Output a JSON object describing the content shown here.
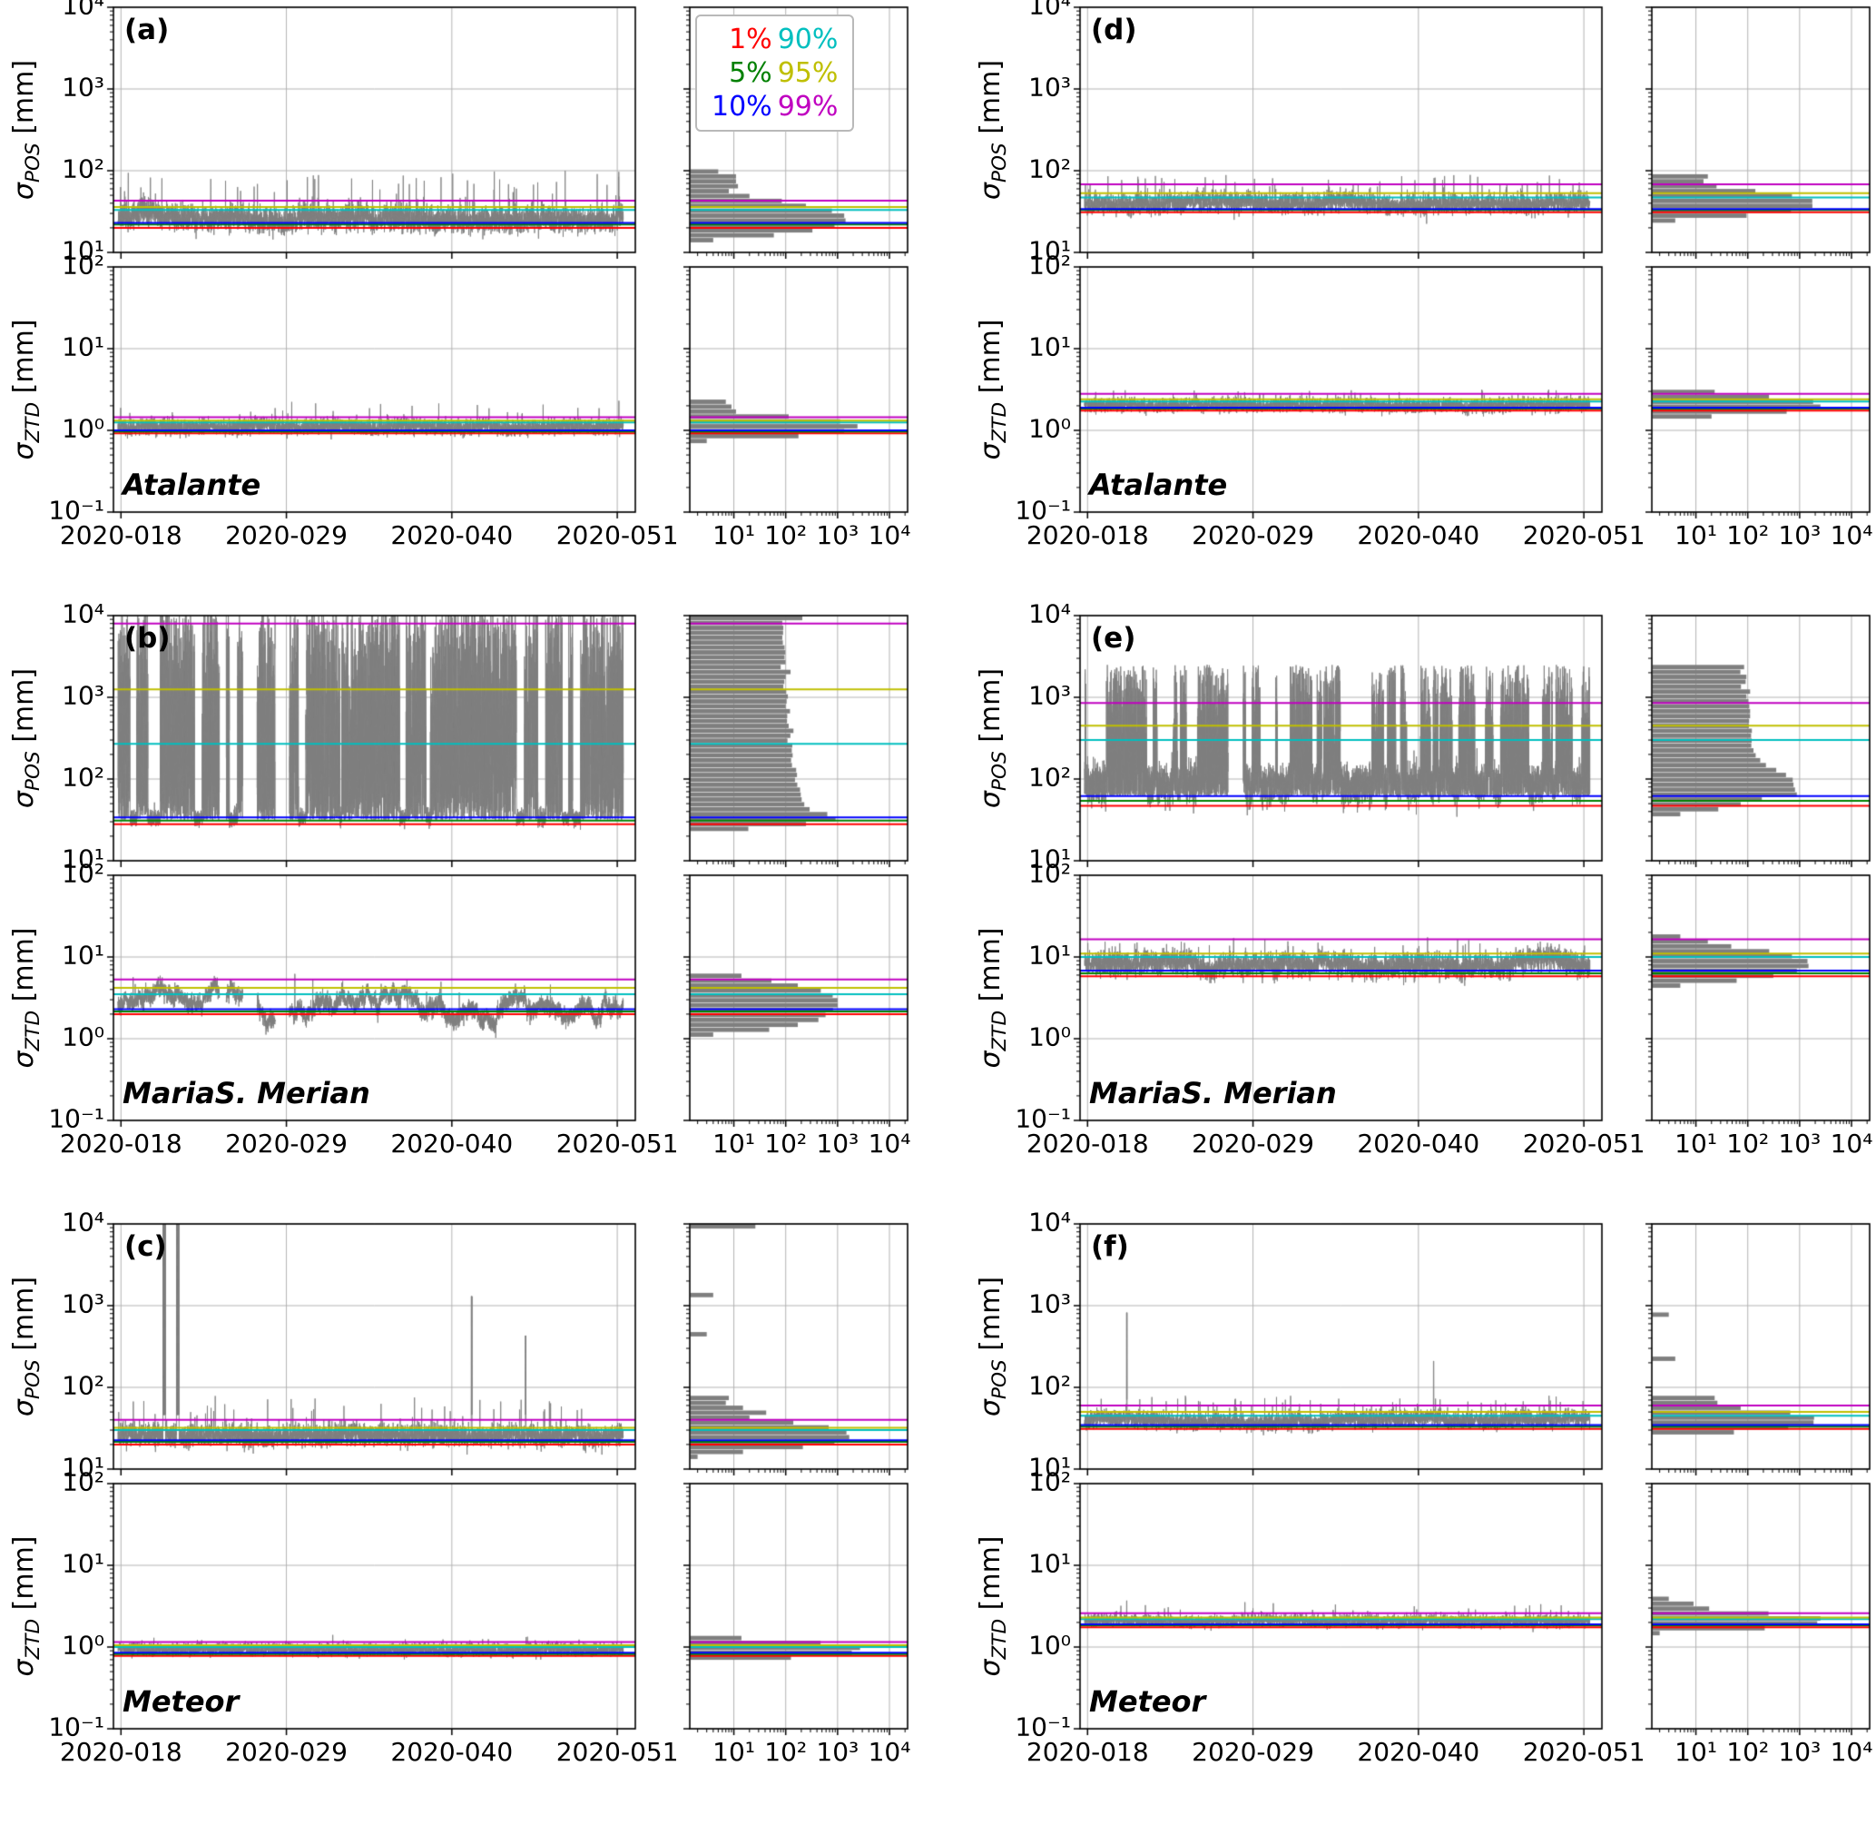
{
  "colors": {
    "series": "#7f7f7f",
    "grid": "#b3b3b3",
    "axis": "#000000",
    "background": "#ffffff",
    "percentiles": {
      "p1": "#ff0000",
      "p5": "#008000",
      "p10": "#0000ff",
      "p90": "#00bfbf",
      "p95": "#bfbf00",
      "p99": "#c000c0"
    }
  },
  "legend": {
    "items": [
      {
        "key": "p1",
        "label": "1%"
      },
      {
        "key": "p5",
        "label": "5%"
      },
      {
        "key": "p10",
        "label": "10%"
      },
      {
        "key": "p90",
        "label": "90%"
      },
      {
        "key": "p95",
        "label": "95%"
      },
      {
        "key": "p99",
        "label": "99%"
      }
    ]
  },
  "axes": {
    "time": {
      "tick_labels": [
        "2020-018",
        "2020-029",
        "2020-040",
        "2020-051"
      ],
      "tick_days": [
        18,
        29,
        40,
        51
      ]
    },
    "hist": {
      "tick_labels": [
        "10¹",
        "10²",
        "10³",
        "10⁴"
      ],
      "tick_logs": [
        1,
        2,
        3,
        4
      ]
    },
    "pos_axis": {
      "sym": "σ",
      "sub": "POS",
      "unit": " [mm]",
      "tick_labels": [
        "10⁴",
        "10³",
        "10²",
        "10¹"
      ],
      "tick_logs": [
        4,
        3,
        2,
        1
      ],
      "ylim_log": [
        1,
        4
      ]
    },
    "ztd_axis": {
      "sym": "σ",
      "sub": "ZTD",
      "unit": " [mm]",
      "tick_labels": [
        "10²",
        "10¹",
        "10⁰",
        "10⁻¹"
      ],
      "tick_logs": [
        2,
        1,
        0,
        -1
      ],
      "ylim_log": [
        -1,
        2
      ]
    }
  },
  "chart_meta": {
    "type": "line",
    "description": "Formal errors of kinematic PPP position (sigma_POS) and ZTD (sigma_ZTD) per ship, log y-scale, with marginal horizontal histograms (log count axis) and percentile lines 1/5/10/90/95/99%.",
    "histogram": {
      "orientation": "horizontal",
      "x": "count",
      "x_scale": "log"
    }
  },
  "chart_data": [
    {
      "panel_label": "(a)",
      "ship": "Atalante",
      "col": 0,
      "group": 0,
      "pos": {
        "percentiles_mm": {
          "p1": 20,
          "p5": 22,
          "p10": 23,
          "p90": 33,
          "p95": 36,
          "p99": 43
        },
        "series": {
          "kind": "band",
          "n": 5200,
          "seed": 11,
          "base_mm": 27,
          "sigma_log": 0.075,
          "wander_log": 0.03,
          "spike_prob": 0.01,
          "spike_max_log": 2.0,
          "spikes": [],
          "gaps": []
        }
      },
      "ztd": {
        "percentiles_mm": {
          "p1": 0.92,
          "p5": 0.97,
          "p10": 1.0,
          "p90": 1.25,
          "p95": 1.32,
          "p99": 1.45
        },
        "series": {
          "kind": "band",
          "n": 5200,
          "seed": 12,
          "base_mm": 1.1,
          "sigma_log": 0.045,
          "wander_log": 0.015,
          "spike_prob": 0.005,
          "spike_max_log": 0.35,
          "spikes": [
            {
              "day": 51.1,
              "v_mm": 2.3,
              "w": 3
            }
          ],
          "gaps": []
        }
      }
    },
    {
      "panel_label": "(b)",
      "ship": "MariaS. Merian",
      "col": 0,
      "group": 1,
      "pos": {
        "percentiles_mm": {
          "p1": 28,
          "p5": 31,
          "p10": 34,
          "p90": 270,
          "p95": 1250,
          "p99": 8000
        },
        "series": {
          "kind": "bursty",
          "n": 7500,
          "seed": 21,
          "quiet_base_mm": 33,
          "quiet_sigma_log": 0.05,
          "burst_low_log": 1.5,
          "burst_high_log": 4.1,
          "burst_frac": 0.8,
          "burst_pow": 1.5,
          "seg_min": 20,
          "seg_max": 160,
          "spikes": [],
          "gaps": [
            [
              24.55,
              25.0
            ],
            [
              26.1,
              27.05
            ],
            [
              28.25,
              29.2
            ]
          ]
        }
      },
      "ztd": {
        "percentiles_mm": {
          "p1": 2.0,
          "p5": 2.15,
          "p10": 2.3,
          "p90": 3.5,
          "p95": 4.2,
          "p99": 5.3
        },
        "series": {
          "kind": "band",
          "n": 6000,
          "seed": 22,
          "base_mm": 2.7,
          "sigma_log": 0.05,
          "wander_log": 0.12,
          "spike_prob": 0.002,
          "spike_max_log": 0.78,
          "spikes": [
            {
              "day": 29.55,
              "v_mm": 6.2,
              "w": 5
            }
          ],
          "gaps": [
            [
              24.55,
              25.0
            ],
            [
              26.1,
              27.05
            ],
            [
              28.25,
              29.2
            ]
          ]
        }
      }
    },
    {
      "panel_label": "(c)",
      "ship": "Meteor",
      "col": 0,
      "group": 2,
      "pos": {
        "percentiles_mm": {
          "p1": 20,
          "p5": 21.5,
          "p10": 22.5,
          "p90": 30,
          "p95": 32,
          "p99": 40
        },
        "series": {
          "kind": "band",
          "n": 5200,
          "seed": 31,
          "base_mm": 26,
          "sigma_log": 0.065,
          "wander_log": 0.02,
          "spike_prob": 0.01,
          "spike_max_log": 1.9,
          "spikes": [
            {
              "day": 20.8,
              "v_mm": 12000,
              "w": 26
            },
            {
              "day": 21.7,
              "v_mm": 12000,
              "w": 26
            },
            {
              "day": 41.3,
              "v_mm": 1300,
              "w": 8
            },
            {
              "day": 44.9,
              "v_mm": 430,
              "w": 6
            }
          ],
          "gaps": []
        }
      },
      "ztd": {
        "percentiles_mm": {
          "p1": 0.78,
          "p5": 0.82,
          "p10": 0.85,
          "p90": 1.0,
          "p95": 1.05,
          "p99": 1.15
        },
        "series": {
          "kind": "band",
          "n": 5200,
          "seed": 32,
          "base_mm": 0.95,
          "sigma_log": 0.035,
          "wander_log": 0.012,
          "spike_prob": 0.004,
          "spike_max_log": 0.15,
          "spikes": [],
          "gaps": []
        }
      }
    },
    {
      "panel_label": "(d)",
      "ship": "Atalante",
      "col": 1,
      "group": 0,
      "pos": {
        "percentiles_mm": {
          "p1": 31,
          "p5": 33,
          "p10": 34,
          "p90": 47,
          "p95": 53,
          "p99": 68
        },
        "series": {
          "kind": "band",
          "n": 5200,
          "seed": 41,
          "base_mm": 40,
          "sigma_log": 0.055,
          "wander_log": 0.02,
          "spike_prob": 0.012,
          "spike_max_log": 1.95,
          "spikes": [],
          "gaps": []
        }
      },
      "ztd": {
        "percentiles_mm": {
          "p1": 1.75,
          "p5": 1.85,
          "p10": 1.9,
          "p90": 2.25,
          "p95": 2.4,
          "p99": 2.8
        },
        "series": {
          "kind": "band",
          "n": 5200,
          "seed": 42,
          "base_mm": 2.05,
          "sigma_log": 0.04,
          "wander_log": 0.012,
          "spike_prob": 0.008,
          "spike_max_log": 0.5,
          "spikes": [],
          "gaps": []
        }
      }
    },
    {
      "panel_label": "(e)",
      "ship": "MariaS. Merian",
      "col": 1,
      "group": 1,
      "pos": {
        "percentiles_mm": {
          "p1": 47,
          "p5": 54,
          "p10": 62,
          "p90": 300,
          "p95": 450,
          "p99": 850
        },
        "series": {
          "kind": "bursty",
          "n": 7000,
          "seed": 51,
          "quiet_base_mm": 85,
          "quiet_sigma_log": 0.12,
          "burst_low_log": 1.8,
          "burst_high_log": 3.4,
          "burst_frac": 0.52,
          "burst_pow": 1.8,
          "seg_min": 15,
          "seg_max": 120,
          "spikes": [],
          "gaps": [
            [
              27.35,
              28.35
            ]
          ]
        }
      },
      "ztd": {
        "percentiles_mm": {
          "p1": 5.8,
          "p5": 6.3,
          "p10": 6.8,
          "p90": 10,
          "p95": 11,
          "p99": 16.5
        },
        "series": {
          "kind": "band",
          "n": 5200,
          "seed": 52,
          "base_mm": 8.2,
          "sigma_log": 0.07,
          "wander_log": 0.04,
          "spike_prob": 0.004,
          "spike_max_log": 1.25,
          "spikes": [
            {
              "day": 27.7,
              "v_mm": 17,
              "w": 4
            },
            {
              "day": 28.5,
              "v_mm": 13,
              "w": 3
            }
          ],
          "gaps": []
        }
      }
    },
    {
      "panel_label": "(f)",
      "ship": "Meteor",
      "col": 1,
      "group": 2,
      "pos": {
        "percentiles_mm": {
          "p1": 31,
          "p5": 33,
          "p10": 34.5,
          "p90": 45,
          "p95": 50,
          "p99": 60
        },
        "series": {
          "kind": "band",
          "n": 5200,
          "seed": 61,
          "base_mm": 40,
          "sigma_log": 0.05,
          "wander_log": 0.015,
          "spike_prob": 0.01,
          "spike_max_log": 1.9,
          "spikes": [
            {
              "day": 20.6,
              "v_mm": 820,
              "w": 6
            },
            {
              "day": 41.0,
              "v_mm": 210,
              "w": 4
            }
          ],
          "gaps": []
        }
      },
      "ztd": {
        "percentiles_mm": {
          "p1": 1.75,
          "p5": 1.85,
          "p10": 1.9,
          "p90": 2.2,
          "p95": 2.3,
          "p99": 2.6
        },
        "series": {
          "kind": "band",
          "n": 5200,
          "seed": 62,
          "base_mm": 2.1,
          "sigma_log": 0.035,
          "wander_log": 0.01,
          "spike_prob": 0.006,
          "spike_max_log": 0.55,
          "spikes": [
            {
              "day": 20.6,
              "v_mm": 3.7,
              "w": 3
            }
          ],
          "gaps": []
        }
      }
    }
  ]
}
